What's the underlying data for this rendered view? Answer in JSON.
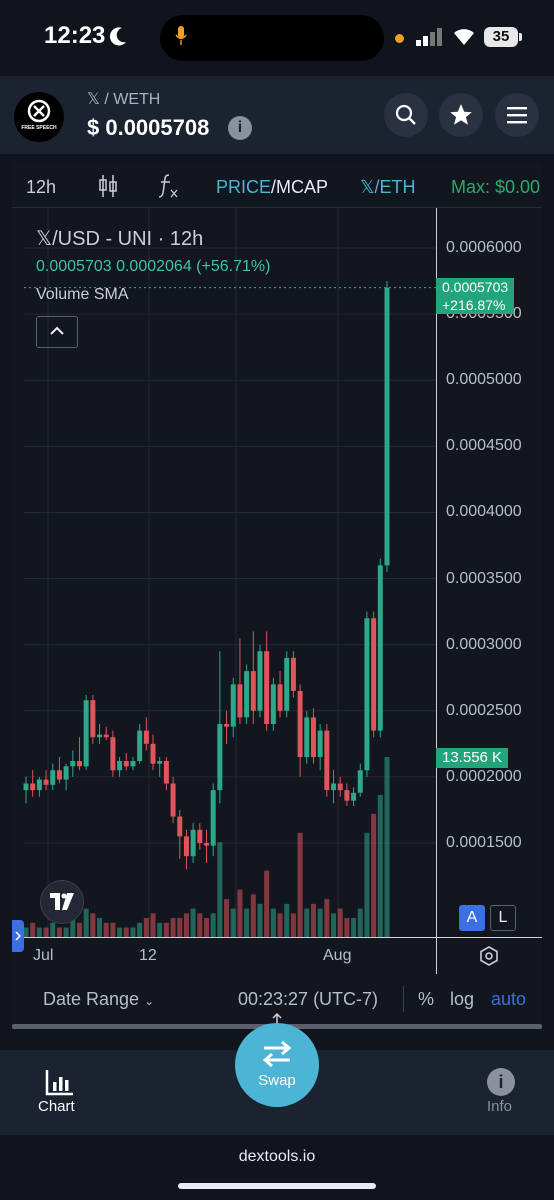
{
  "status_bar": {
    "time": "12:23",
    "battery": "35"
  },
  "header": {
    "logo_text": "FREE SPEECH",
    "pair": "𝕏 / WETH",
    "price": "$ 0.0005708",
    "info_glyph": "i"
  },
  "toolbar": {
    "interval": "12h",
    "price_label": "PRICE",
    "mcap_label": "/MCAP",
    "quote": "𝕏/ETH",
    "max_label": "Max: $0.00"
  },
  "legend": {
    "title": "𝕏/USD - UNI · 12h",
    "values": "0.0005703  0.0002064 (+56.71%)",
    "volume": "Volume SMA"
  },
  "price_axis": [
    "0.0006000",
    "0.0005500",
    "0.0005000",
    "0.0004500",
    "0.0004000",
    "0.0003500",
    "0.0003000",
    "0.0002500",
    "0.0002000",
    "0.0001500"
  ],
  "last_price_tag": {
    "price": "0.0005703",
    "change": "+216.87%"
  },
  "volume_tag": "13.556 K",
  "time_axis": [
    "Jul",
    "12",
    "Aug"
  ],
  "scale_buttons": {
    "auto_label": "A",
    "log_label": "L"
  },
  "chart_footer": {
    "date_range": "Date Range",
    "clock": "00:23:27 (UTC-7)",
    "pct": "%",
    "log": "log",
    "auto": "auto"
  },
  "bottom_nav": {
    "chart": "Chart",
    "swap": "Swap",
    "info": "Info"
  },
  "footer": {
    "domain": "dextools.io"
  },
  "colors": {
    "up": "#2fa88a",
    "down": "#e0545a",
    "accent": "#4cb5d5",
    "price_tag": "#22a57a"
  },
  "chart_data": {
    "type": "candlestick",
    "title": "𝕏/USD - UNI · 12h",
    "ylim": [
      0.0001,
      0.00062
    ],
    "x_ticks": [
      "Jul",
      "12",
      "Aug"
    ],
    "candles": [
      {
        "o": 0.00019,
        "h": 0.0002,
        "l": 0.00018,
        "c": 0.000195
      },
      {
        "o": 0.000195,
        "h": 0.000205,
        "l": 0.000185,
        "c": 0.00019
      },
      {
        "o": 0.00019,
        "h": 0.0002,
        "l": 0.000185,
        "c": 0.000198
      },
      {
        "o": 0.000198,
        "h": 0.000205,
        "l": 0.00019,
        "c": 0.000194
      },
      {
        "o": 0.000194,
        "h": 0.00021,
        "l": 0.00019,
        "c": 0.000205
      },
      {
        "o": 0.000205,
        "h": 0.000215,
        "l": 0.000195,
        "c": 0.000198
      },
      {
        "o": 0.000198,
        "h": 0.00021,
        "l": 0.00019,
        "c": 0.000208
      },
      {
        "o": 0.000208,
        "h": 0.00022,
        "l": 0.0002,
        "c": 0.000212
      },
      {
        "o": 0.000212,
        "h": 0.00023,
        "l": 0.000205,
        "c": 0.000208
      },
      {
        "o": 0.000208,
        "h": 0.000262,
        "l": 0.000205,
        "c": 0.000258
      },
      {
        "o": 0.000258,
        "h": 0.000262,
        "l": 0.000225,
        "c": 0.00023
      },
      {
        "o": 0.00023,
        "h": 0.00024,
        "l": 0.000225,
        "c": 0.000232
      },
      {
        "o": 0.000232,
        "h": 0.000238,
        "l": 0.000228,
        "c": 0.00023
      },
      {
        "o": 0.00023,
        "h": 0.000235,
        "l": 0.0002,
        "c": 0.000205
      },
      {
        "o": 0.000205,
        "h": 0.000215,
        "l": 0.0002,
        "c": 0.000212
      },
      {
        "o": 0.000212,
        "h": 0.000218,
        "l": 0.000205,
        "c": 0.000208
      },
      {
        "o": 0.000208,
        "h": 0.000215,
        "l": 0.000205,
        "c": 0.000212
      },
      {
        "o": 0.000212,
        "h": 0.00024,
        "l": 0.00021,
        "c": 0.000235
      },
      {
        "o": 0.000235,
        "h": 0.000245,
        "l": 0.00022,
        "c": 0.000225
      },
      {
        "o": 0.000225,
        "h": 0.000232,
        "l": 0.000205,
        "c": 0.00021
      },
      {
        "o": 0.00021,
        "h": 0.000215,
        "l": 0.0002,
        "c": 0.000212
      },
      {
        "o": 0.000212,
        "h": 0.000215,
        "l": 0.00019,
        "c": 0.000195
      },
      {
        "o": 0.000195,
        "h": 0.0002,
        "l": 0.000165,
        "c": 0.00017
      },
      {
        "o": 0.00017,
        "h": 0.000175,
        "l": 0.000138,
        "c": 0.000155
      },
      {
        "o": 0.000155,
        "h": 0.00016,
        "l": 0.00013,
        "c": 0.00014
      },
      {
        "o": 0.00014,
        "h": 0.000165,
        "l": 0.000135,
        "c": 0.00016
      },
      {
        "o": 0.00016,
        "h": 0.000165,
        "l": 0.000145,
        "c": 0.00015
      },
      {
        "o": 0.00015,
        "h": 0.00016,
        "l": 0.000135,
        "c": 0.000148
      },
      {
        "o": 0.000148,
        "h": 0.000195,
        "l": 0.00014,
        "c": 0.00019
      },
      {
        "o": 0.00019,
        "h": 0.000295,
        "l": 0.00018,
        "c": 0.00024
      },
      {
        "o": 0.00024,
        "h": 0.00025,
        "l": 0.000225,
        "c": 0.000238
      },
      {
        "o": 0.000238,
        "h": 0.000275,
        "l": 0.00023,
        "c": 0.00027
      },
      {
        "o": 0.00027,
        "h": 0.000305,
        "l": 0.00024,
        "c": 0.000245
      },
      {
        "o": 0.000245,
        "h": 0.000285,
        "l": 0.00024,
        "c": 0.00028
      },
      {
        "o": 0.00028,
        "h": 0.00031,
        "l": 0.00024,
        "c": 0.00025
      },
      {
        "o": 0.00025,
        "h": 0.0003,
        "l": 0.000245,
        "c": 0.000295
      },
      {
        "o": 0.000295,
        "h": 0.00031,
        "l": 0.000235,
        "c": 0.00024
      },
      {
        "o": 0.00024,
        "h": 0.000275,
        "l": 0.000235,
        "c": 0.00027
      },
      {
        "o": 0.00027,
        "h": 0.00028,
        "l": 0.000245,
        "c": 0.00025
      },
      {
        "o": 0.00025,
        "h": 0.000295,
        "l": 0.000245,
        "c": 0.00029
      },
      {
        "o": 0.00029,
        "h": 0.000295,
        "l": 0.00026,
        "c": 0.000265
      },
      {
        "o": 0.000265,
        "h": 0.00027,
        "l": 0.0002,
        "c": 0.000215
      },
      {
        "o": 0.000215,
        "h": 0.00025,
        "l": 0.00021,
        "c": 0.000245
      },
      {
        "o": 0.000245,
        "h": 0.000252,
        "l": 0.00021,
        "c": 0.000215
      },
      {
        "o": 0.000215,
        "h": 0.00024,
        "l": 0.000205,
        "c": 0.000235
      },
      {
        "o": 0.000235,
        "h": 0.00024,
        "l": 0.000185,
        "c": 0.00019
      },
      {
        "o": 0.00019,
        "h": 0.000205,
        "l": 0.00018,
        "c": 0.000195
      },
      {
        "o": 0.000195,
        "h": 0.0002,
        "l": 0.000185,
        "c": 0.00019
      },
      {
        "o": 0.00019,
        "h": 0.000195,
        "l": 0.000178,
        "c": 0.000182
      },
      {
        "o": 0.000182,
        "h": 0.000192,
        "l": 0.000178,
        "c": 0.000188
      },
      {
        "o": 0.000188,
        "h": 0.00021,
        "l": 0.000185,
        "c": 0.000205
      },
      {
        "o": 0.000205,
        "h": 0.000325,
        "l": 0.0002,
        "c": 0.00032
      },
      {
        "o": 0.00032,
        "h": 0.000325,
        "l": 0.00023,
        "c": 0.000235
      },
      {
        "o": 0.000235,
        "h": 0.000365,
        "l": 0.00023,
        "c": 0.00036
      },
      {
        "o": 0.00036,
        "h": 0.000575,
        "l": 0.000355,
        "c": 0.00057
      }
    ],
    "volume": [
      2,
      3,
      2,
      2,
      3,
      2,
      2,
      4,
      3,
      6,
      5,
      4,
      3,
      3,
      2,
      2,
      2,
      3,
      4,
      5,
      3,
      3,
      4,
      4,
      5,
      6,
      5,
      4,
      5,
      20,
      8,
      6,
      10,
      6,
      9,
      7,
      14,
      6,
      5,
      7,
      5,
      22,
      6,
      7,
      6,
      8,
      5,
      6,
      4,
      4,
      6,
      22,
      26,
      30,
      38
    ]
  }
}
